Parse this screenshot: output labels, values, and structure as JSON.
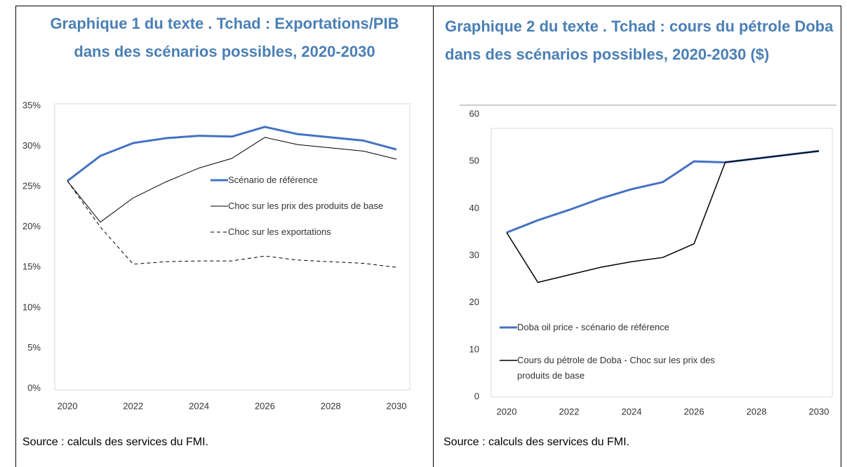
{
  "chart_data": [
    {
      "type": "line",
      "title": "Graphique 1 du texte . Tchad : Exportations/PIB dans des scénarios possibles, 2020-2030",
      "x": [
        2020,
        2021,
        2022,
        2023,
        2024,
        2025,
        2026,
        2027,
        2028,
        2029,
        2030
      ],
      "xlim": [
        2020,
        2030
      ],
      "xticks": [
        2020,
        2022,
        2024,
        2026,
        2028,
        2030
      ],
      "ylim": [
        0,
        35
      ],
      "yticks": [
        {
          "value": 0,
          "label": "0%"
        },
        {
          "value": 5,
          "label": "5%"
        },
        {
          "value": 10,
          "label": "10%"
        },
        {
          "value": 15,
          "label": "15%"
        },
        {
          "value": 20,
          "label": "20%"
        },
        {
          "value": 25,
          "label": "25%"
        },
        {
          "value": 30,
          "label": "30%"
        },
        {
          "value": 35,
          "label": "35%"
        }
      ],
      "legend": "center-right",
      "series": [
        {
          "name": "Scénario de référence",
          "color": "#4472c4",
          "linewidth": 3,
          "values": [
            25.7,
            28.8,
            30.4,
            31.0,
            31.3,
            31.2,
            32.4,
            31.5,
            31.1,
            30.7,
            29.6
          ]
        },
        {
          "name": "Choc sur les prix des produits de base",
          "color": "#000000",
          "linewidth": 1,
          "values": [
            25.7,
            20.6,
            23.6,
            25.6,
            27.3,
            28.5,
            31.1,
            30.2,
            29.8,
            29.4,
            28.4
          ]
        },
        {
          "name": "Choc sur les exportations",
          "color": "#000000",
          "linewidth": 1,
          "linestyle": "dashed",
          "values": [
            25.7,
            20.0,
            15.4,
            15.7,
            15.8,
            15.8,
            16.4,
            15.9,
            15.7,
            15.5,
            15.0
          ]
        }
      ],
      "source": "Source : calculs des services du FMI."
    },
    {
      "type": "line",
      "title": "Graphique 2 du texte . Tchad : cours du pétrole Doba dans des scénarios possibles, 2020-2030 ($)",
      "x": [
        2020,
        2021,
        2022,
        2023,
        2024,
        2025,
        2026,
        2027,
        2028,
        2029,
        2030
      ],
      "xlim": [
        2020,
        2030
      ],
      "xticks": [
        2020,
        2022,
        2024,
        2026,
        2028,
        2030
      ],
      "ylim": [
        0,
        60
      ],
      "yticks": [
        0,
        10,
        20,
        30,
        40,
        50,
        60
      ],
      "legend": "lower-left",
      "series": [
        {
          "name": "Doba oil price - scénario de référence",
          "color": "#4472c4",
          "linewidth": 3,
          "values": [
            34.9,
            37.5,
            39.7,
            42.1,
            44.1,
            45.6,
            50.0,
            49.8,
            50.6,
            51.4,
            52.2
          ]
        },
        {
          "name": "Cours du pétrole de Doba - Choc sur les prix des produits de base",
          "color": "#000000",
          "linewidth": 1.5,
          "values": [
            34.9,
            24.3,
            25.9,
            27.5,
            28.7,
            29.6,
            32.5,
            49.8,
            50.6,
            51.4,
            52.2
          ]
        }
      ],
      "source": "Source : calculs des services du FMI."
    }
  ]
}
